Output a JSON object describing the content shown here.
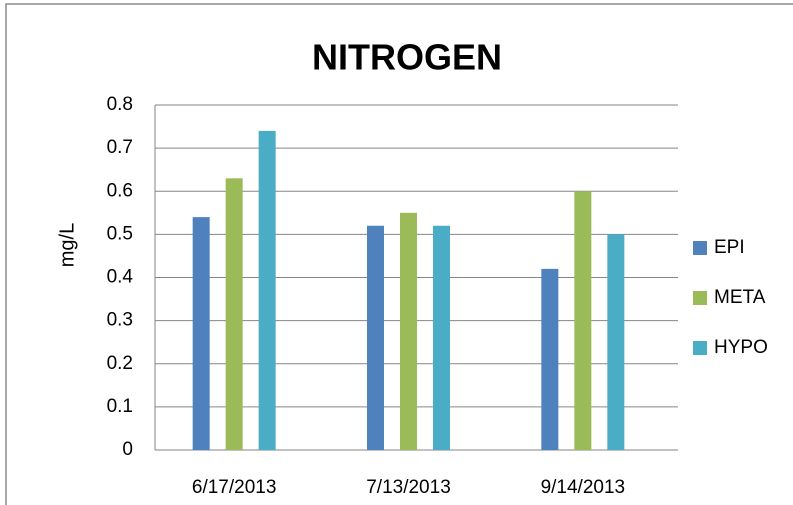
{
  "chart_data": {
    "type": "bar",
    "title": "NITROGEN",
    "y_label": "mg/L",
    "categories": [
      "6/17/2013",
      "7/13/2013",
      "9/14/2013"
    ],
    "series": [
      {
        "name": "EPI",
        "color": "#4f81bd",
        "values": [
          0.54,
          0.52,
          0.42
        ]
      },
      {
        "name": "META",
        "color": "#9bbb59",
        "values": [
          0.63,
          0.55,
          0.6
        ]
      },
      {
        "name": "HYPO",
        "color": "#4bacc6",
        "values": [
          0.74,
          0.52,
          0.5
        ]
      }
    ],
    "ylim": [
      0,
      0.8
    ],
    "yticks": [
      0,
      0.1,
      0.2,
      0.3,
      0.4,
      0.5,
      0.6,
      0.7,
      0.8
    ],
    "grid": true,
    "legend": "right"
  }
}
